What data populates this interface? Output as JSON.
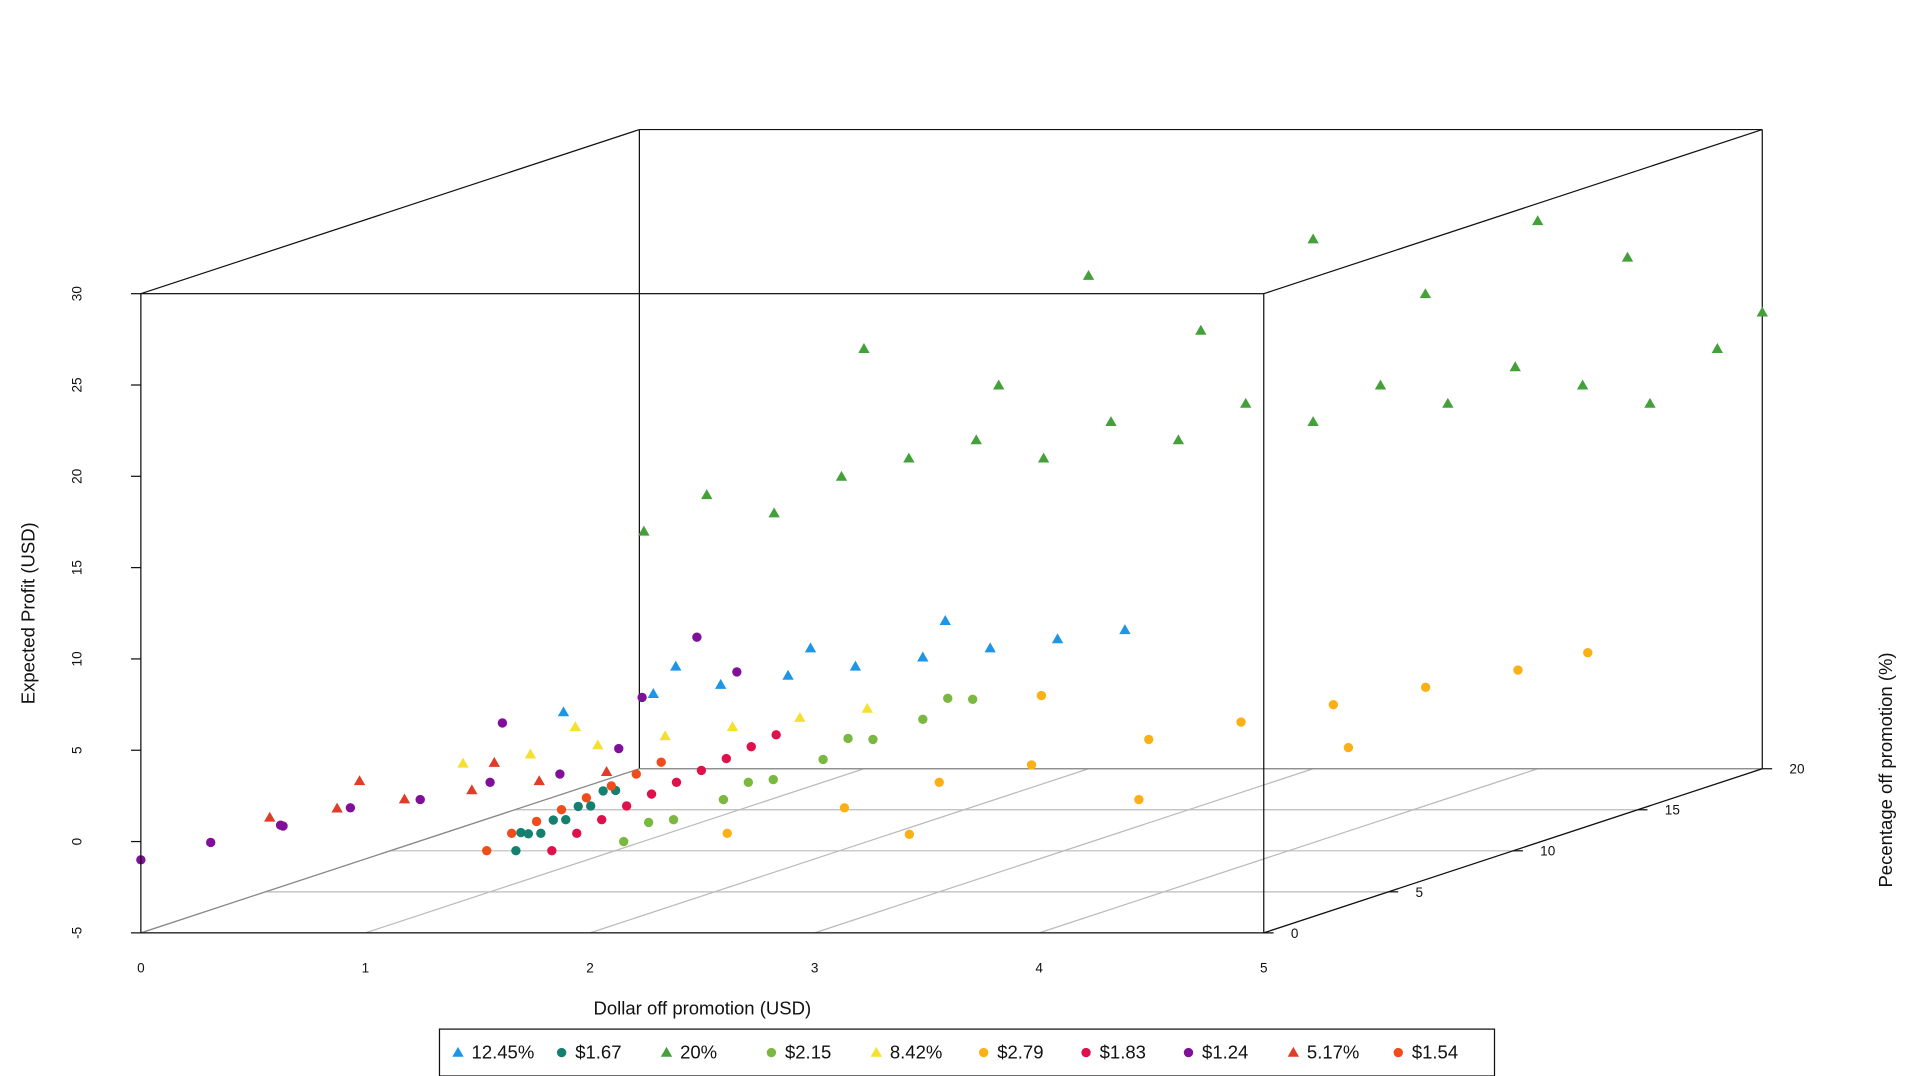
{
  "chart_data": {
    "type": "scatter3d",
    "x_label": "Dollar off promotion (USD)",
    "y_label": "Pecentage off promotion (%)",
    "z_label": "Expected Profit (USD)",
    "xlim": [
      0,
      5
    ],
    "xticks": [
      0,
      1,
      2,
      3,
      4,
      5
    ],
    "ylim": [
      0,
      20
    ],
    "yticks": [
      0,
      5,
      10,
      15,
      20
    ],
    "zlim": [
      -5,
      30
    ],
    "zticks": [
      -5,
      0,
      5,
      10,
      15,
      20,
      25,
      30
    ],
    "grid": true,
    "legend": "bottom",
    "series": [
      {
        "name": "12.45%",
        "color": "#1e96e6",
        "marker": "triangle",
        "x": [
          0.5,
          0.9,
          1.2,
          1.5,
          1.8,
          2.1,
          2.4,
          2.7,
          3.0,
          1.0,
          1.6,
          2.2
        ],
        "y": [
          12.45,
          12.45,
          12.45,
          12.45,
          12.45,
          12.45,
          12.45,
          12.45,
          12.45,
          12.45,
          12.45,
          12.45
        ],
        "z": [
          1.5,
          2.5,
          3,
          3.5,
          4,
          4.5,
          5,
          5.5,
          6,
          4,
          5,
          6.5
        ]
      },
      {
        "name": "$1.67",
        "color": "#138070",
        "marker": "circle",
        "x": [
          1.67,
          1.67,
          1.67,
          1.67,
          1.67,
          1.67,
          1.67,
          1.67,
          1.67,
          1.67
        ],
        "y": [
          0,
          1,
          2,
          3,
          4,
          0.5,
          1.5,
          2.5,
          3.5,
          0.2
        ],
        "z": [
          -0.5,
          0,
          0.3,
          0.6,
          1,
          0.2,
          0.5,
          0.8,
          1.2,
          0.4
        ]
      },
      {
        "name": "20%",
        "color": "#44a038",
        "marker": "triangle",
        "x": [
          0.02,
          0.3,
          0.6,
          0.9,
          1.2,
          1.5,
          1.8,
          2.1,
          2.4,
          2.7,
          3.0,
          3.3,
          3.6,
          3.9,
          4.2,
          4.5,
          4.8,
          5.0,
          1.0,
          2.0,
          3.0,
          4.0,
          2.5,
          3.5,
          4.4,
          1.6
        ],
        "y": [
          20,
          20,
          20,
          20,
          20,
          20,
          20,
          20,
          20,
          20,
          20,
          20,
          20,
          20,
          20,
          20,
          20,
          20,
          20,
          20,
          20,
          20,
          20,
          20,
          20,
          20
        ],
        "z": [
          8,
          10,
          9,
          11,
          12,
          13,
          12,
          14,
          13,
          15,
          14,
          16,
          15,
          17,
          16,
          15,
          18,
          20,
          18,
          22,
          24,
          25,
          19,
          21,
          23,
          16
        ]
      },
      {
        "name": "$2.15",
        "color": "#7ab840",
        "marker": "circle",
        "x": [
          2.15,
          2.15,
          2.15,
          2.15,
          2.15,
          2.15,
          2.15,
          2.15,
          2.15,
          2.15,
          2.15,
          2.15
        ],
        "y": [
          0,
          2,
          4,
          6,
          8,
          10,
          12,
          14,
          1,
          5,
          9,
          13
        ],
        "z": [
          0,
          0.3,
          0.5,
          0.7,
          0.9,
          1.1,
          1.3,
          1.5,
          0.6,
          1,
          1.6,
          2
        ]
      },
      {
        "name": "8.42%",
        "color": "#f5e030",
        "marker": "triangle",
        "x": [
          0.5,
          0.8,
          1.1,
          1.4,
          1.7,
          2.0,
          2.3,
          1.0
        ],
        "y": [
          8.42,
          8.42,
          8.42,
          8.42,
          8.42,
          8.42,
          8.42,
          8.42
        ],
        "z": [
          0.5,
          1,
          1.5,
          2,
          2.5,
          3,
          3.5,
          2.5
        ]
      },
      {
        "name": "$2.79",
        "color": "#fbb116",
        "marker": "circle",
        "x": [
          2.5,
          2.8,
          3.0,
          3.3,
          3.6,
          3.9,
          4.2,
          4.5,
          4.8,
          5.0,
          3.2,
          4.0,
          4.6,
          2.9
        ],
        "y": [
          1,
          3,
          5,
          6,
          8,
          9,
          10,
          11,
          12,
          13,
          2,
          4,
          7,
          10
        ],
        "z": [
          0,
          0.5,
          1,
          1.5,
          2,
          2.5,
          3,
          3.5,
          4,
          4.5,
          -0.5,
          0.5,
          2,
          3.5
        ]
      },
      {
        "name": "$1.83",
        "color": "#e0104a",
        "marker": "circle",
        "x": [
          1.83,
          1.83,
          1.83,
          1.83,
          1.83,
          1.83,
          1.83,
          1.83,
          1.83,
          1.83
        ],
        "y": [
          0,
          1,
          2,
          3,
          4,
          5,
          6,
          7,
          8,
          9
        ],
        "z": [
          -0.5,
          0,
          0.3,
          0.6,
          0.8,
          1,
          1.2,
          1.4,
          1.6,
          1.8
        ]
      },
      {
        "name": "$1.24",
        "color": "#80109a",
        "marker": "circle",
        "x": [
          0,
          0.2,
          0.4,
          0.6,
          0.8,
          1.0,
          1.2,
          1.24,
          0.5,
          0.9,
          1.1,
          0.3,
          0.7
        ],
        "y": [
          0,
          1,
          2,
          3,
          4,
          5,
          6,
          8,
          10,
          12,
          14,
          3,
          16
        ],
        "z": [
          -1,
          -0.5,
          0,
          0.5,
          0.5,
          1,
          1,
          1.5,
          2,
          2.5,
          3,
          -0.5,
          4
        ]
      },
      {
        "name": "5.17%",
        "color": "#e03c28",
        "marker": "triangle",
        "x": [
          0,
          0.3,
          0.6,
          0.9,
          1.2,
          1.5,
          0.4,
          1.0
        ],
        "y": [
          5.17,
          5.17,
          5.17,
          5.17,
          5.17,
          5.17,
          5.17,
          5.17
        ],
        "z": [
          -1,
          -0.5,
          0,
          0.5,
          1,
          1.5,
          1,
          2
        ]
      },
      {
        "name": "$1.54",
        "color": "#f04c1c",
        "marker": "circle",
        "x": [
          1.54,
          1.54,
          1.54,
          1.54,
          1.54,
          1.54,
          1.54,
          1.54
        ],
        "y": [
          0,
          1,
          2,
          3,
          4,
          5,
          6,
          7
        ],
        "z": [
          -0.5,
          0,
          0.2,
          0.4,
          0.6,
          0.8,
          1,
          1.2
        ]
      }
    ]
  }
}
